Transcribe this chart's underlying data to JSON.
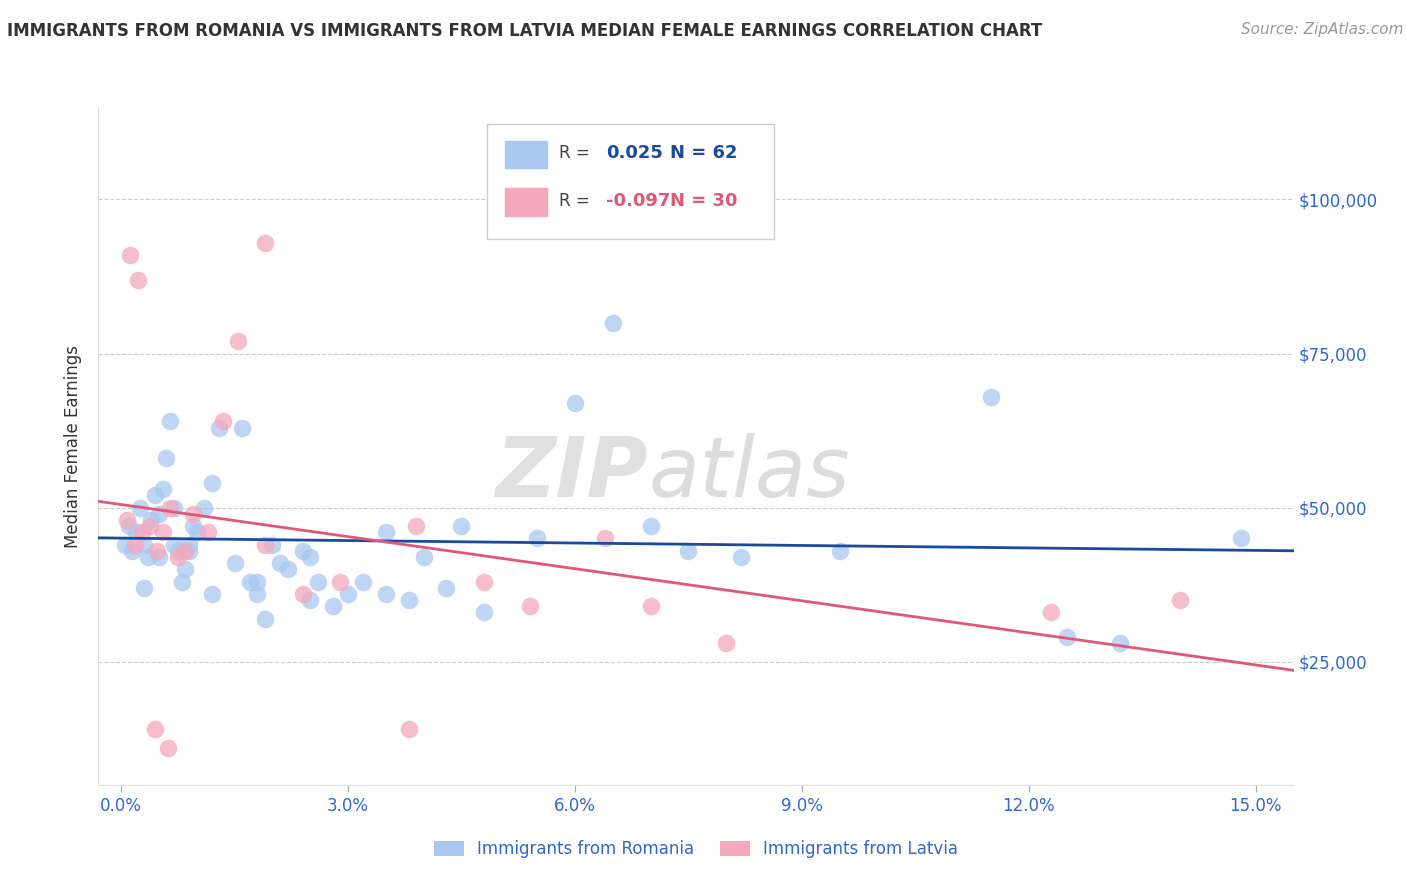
{
  "title": "IMMIGRANTS FROM ROMANIA VS IMMIGRANTS FROM LATVIA MEDIAN FEMALE EARNINGS CORRELATION CHART",
  "source": "Source: ZipAtlas.com",
  "ylabel": "Median Female Earnings",
  "xlabel_ticks": [
    "0.0%",
    "3.0%",
    "6.0%",
    "9.0%",
    "12.0%",
    "15.0%"
  ],
  "xlabel_values": [
    0.0,
    3.0,
    6.0,
    9.0,
    12.0,
    15.0
  ],
  "ytick_labels": [
    "$25,000",
    "$50,000",
    "$75,000",
    "$100,000"
  ],
  "ytick_values": [
    25000,
    50000,
    75000,
    100000
  ],
  "ylim": [
    5000,
    115000
  ],
  "xlim": [
    -0.3,
    15.5
  ],
  "romania_color": "#A8C8F0",
  "latvia_color": "#F4A8BC",
  "trend_romania_color": "#1A4A9C",
  "trend_latvia_color": "#E05878",
  "legend_romania_color": "#A8C8F0",
  "legend_latvia_color": "#F4A8BC",
  "romania_R": "0.025",
  "romania_N": "62",
  "latvia_R": "-0.097",
  "latvia_N": "30",
  "romania_R_color": "#1A4A9C",
  "latvia_R_color": "#E05878",
  "watermark_zip": "ZIP",
  "watermark_atlas": "atlas",
  "romania_x": [
    0.05,
    0.1,
    0.15,
    0.2,
    0.25,
    0.3,
    0.35,
    0.4,
    0.45,
    0.5,
    0.55,
    0.6,
    0.65,
    0.7,
    0.75,
    0.8,
    0.85,
    0.9,
    0.95,
    1.0,
    1.1,
    1.2,
    1.3,
    1.5,
    1.6,
    1.7,
    1.8,
    1.9,
    2.0,
    2.1,
    2.2,
    2.4,
    2.5,
    2.6,
    2.8,
    3.0,
    3.2,
    3.5,
    3.8,
    4.0,
    4.3,
    4.8,
    5.5,
    6.0,
    6.5,
    7.0,
    7.5,
    8.2,
    9.5,
    11.5,
    12.5,
    13.2,
    0.3,
    0.5,
    0.7,
    0.9,
    1.2,
    1.8,
    2.5,
    3.5,
    4.5,
    14.8
  ],
  "romania_y": [
    44000,
    47000,
    43000,
    46000,
    50000,
    44000,
    42000,
    48000,
    52000,
    49000,
    53000,
    58000,
    64000,
    44000,
    43000,
    38000,
    40000,
    44000,
    47000,
    46000,
    50000,
    54000,
    63000,
    41000,
    63000,
    38000,
    36000,
    32000,
    44000,
    41000,
    40000,
    43000,
    35000,
    38000,
    34000,
    36000,
    38000,
    36000,
    35000,
    42000,
    37000,
    33000,
    45000,
    67000,
    80000,
    47000,
    43000,
    42000,
    43000,
    68000,
    29000,
    28000,
    37000,
    42000,
    50000,
    43000,
    36000,
    38000,
    42000,
    46000,
    47000,
    45000
  ],
  "latvia_x": [
    0.08,
    0.18,
    0.28,
    0.38,
    0.48,
    0.55,
    0.65,
    0.75,
    0.85,
    0.95,
    1.15,
    1.35,
    1.55,
    1.9,
    2.4,
    2.9,
    3.9,
    4.8,
    5.4,
    6.4,
    7.0,
    8.0,
    12.3,
    14.0,
    0.12,
    0.22,
    0.45,
    0.62,
    1.9,
    3.8
  ],
  "latvia_y": [
    48000,
    44000,
    46000,
    47000,
    43000,
    46000,
    50000,
    42000,
    43000,
    49000,
    46000,
    64000,
    77000,
    44000,
    36000,
    38000,
    47000,
    38000,
    34000,
    45000,
    34000,
    28000,
    33000,
    35000,
    91000,
    87000,
    14000,
    11000,
    93000,
    14000
  ]
}
